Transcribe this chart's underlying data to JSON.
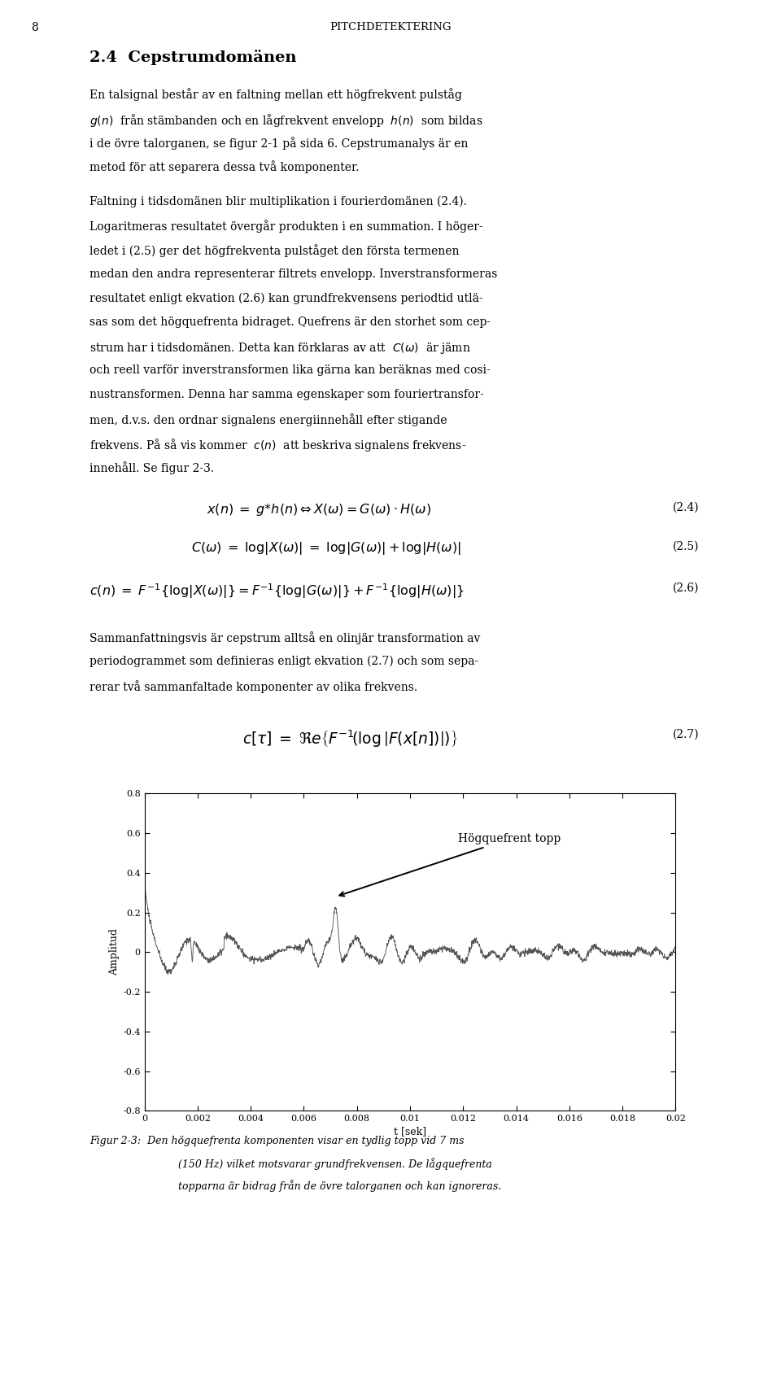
{
  "page_number": "8",
  "header_title": "PITCHDETEKTERING",
  "section_title": "2.4  Cepstrumdomänen",
  "eq24_label": "(2.4)",
  "eq25_label": "(2.5)",
  "eq26_label": "(2.6)",
  "eq27_label": "(2.7)",
  "ylabel": "Amplitud",
  "xlabel": "t [sek]",
  "annotation": "Högquefrent topp",
  "ylim": [
    -0.8,
    0.8
  ],
  "xlim": [
    0,
    0.02
  ],
  "xticks": [
    0,
    0.002,
    0.004,
    0.006,
    0.008,
    0.01,
    0.012,
    0.014,
    0.016,
    0.018,
    0.02
  ],
  "yticks": [
    -0.8,
    -0.6,
    -0.4,
    -0.2,
    0,
    0.2,
    0.4,
    0.6,
    0.8
  ],
  "background_color": "#ffffff",
  "text_color": "#000000",
  "line_color": "#555555",
  "p1_lines": [
    "En talsignal består av en faltning mellan ett högfrekvent pulståg",
    "$g(n)$  från stämbanden och en lågfrekvent envelopp  $h(n)$  som bildas",
    "i de övre talorganen, se figur 2-1 på sida 6. Cepstrumanalys är en",
    "metod för att separera dessa två komponenter."
  ],
  "p2_lines": [
    "Faltning i tidsdomänen blir multiplikation i fourierdomänen (2.4).",
    "Logaritmeras resultatet övergår produkten i en summation. I höger-",
    "ledet i (2.5) ger det högfrekventa pulståget den första termenen",
    "medan den andra representerar filtrets envelopp. Inverstransformeras",
    "resultatet enligt ekvation (2.6) kan grundfrekvensens periodtid utlä-",
    "sas som det högquefrenta bidraget. Quefrens är den storhet som cep-",
    "strum har i tidsdomänen. Detta kan förklaras av att  $C(\\omega)$  är jämn",
    "och reell varför inverstransformen lika gärna kan beräknas med cosi-",
    "nustransformen. Denna har samma egenskaper som fouriertransfor-",
    "men, d.v.s. den ordnar signalens energiinnehåll efter stigande",
    "frekvens. På så vis kommer  $c(n)$  att beskriva signalens frekvens-",
    "innehåll. Se figur 2-3."
  ],
  "p3_lines": [
    "Sammanfattningsvis är cepstrum alltså en olinjär transformation av",
    "periodogrammet som definieras enligt ekvation (2.7) och som sepa-",
    "rerar två sammanfaltade komponenter av olika frekvens."
  ],
  "cap_line0": "Figur 2-3:  Den högquefrenta komponenten visar en tydlig topp vid 7 ms",
  "cap_line1": "(150 Hz) vilket motsvarar grundfrekvensen. De lågquefrenta",
  "cap_line2": "topparna är bidrag från de övre talorganen och kan ignoreras."
}
